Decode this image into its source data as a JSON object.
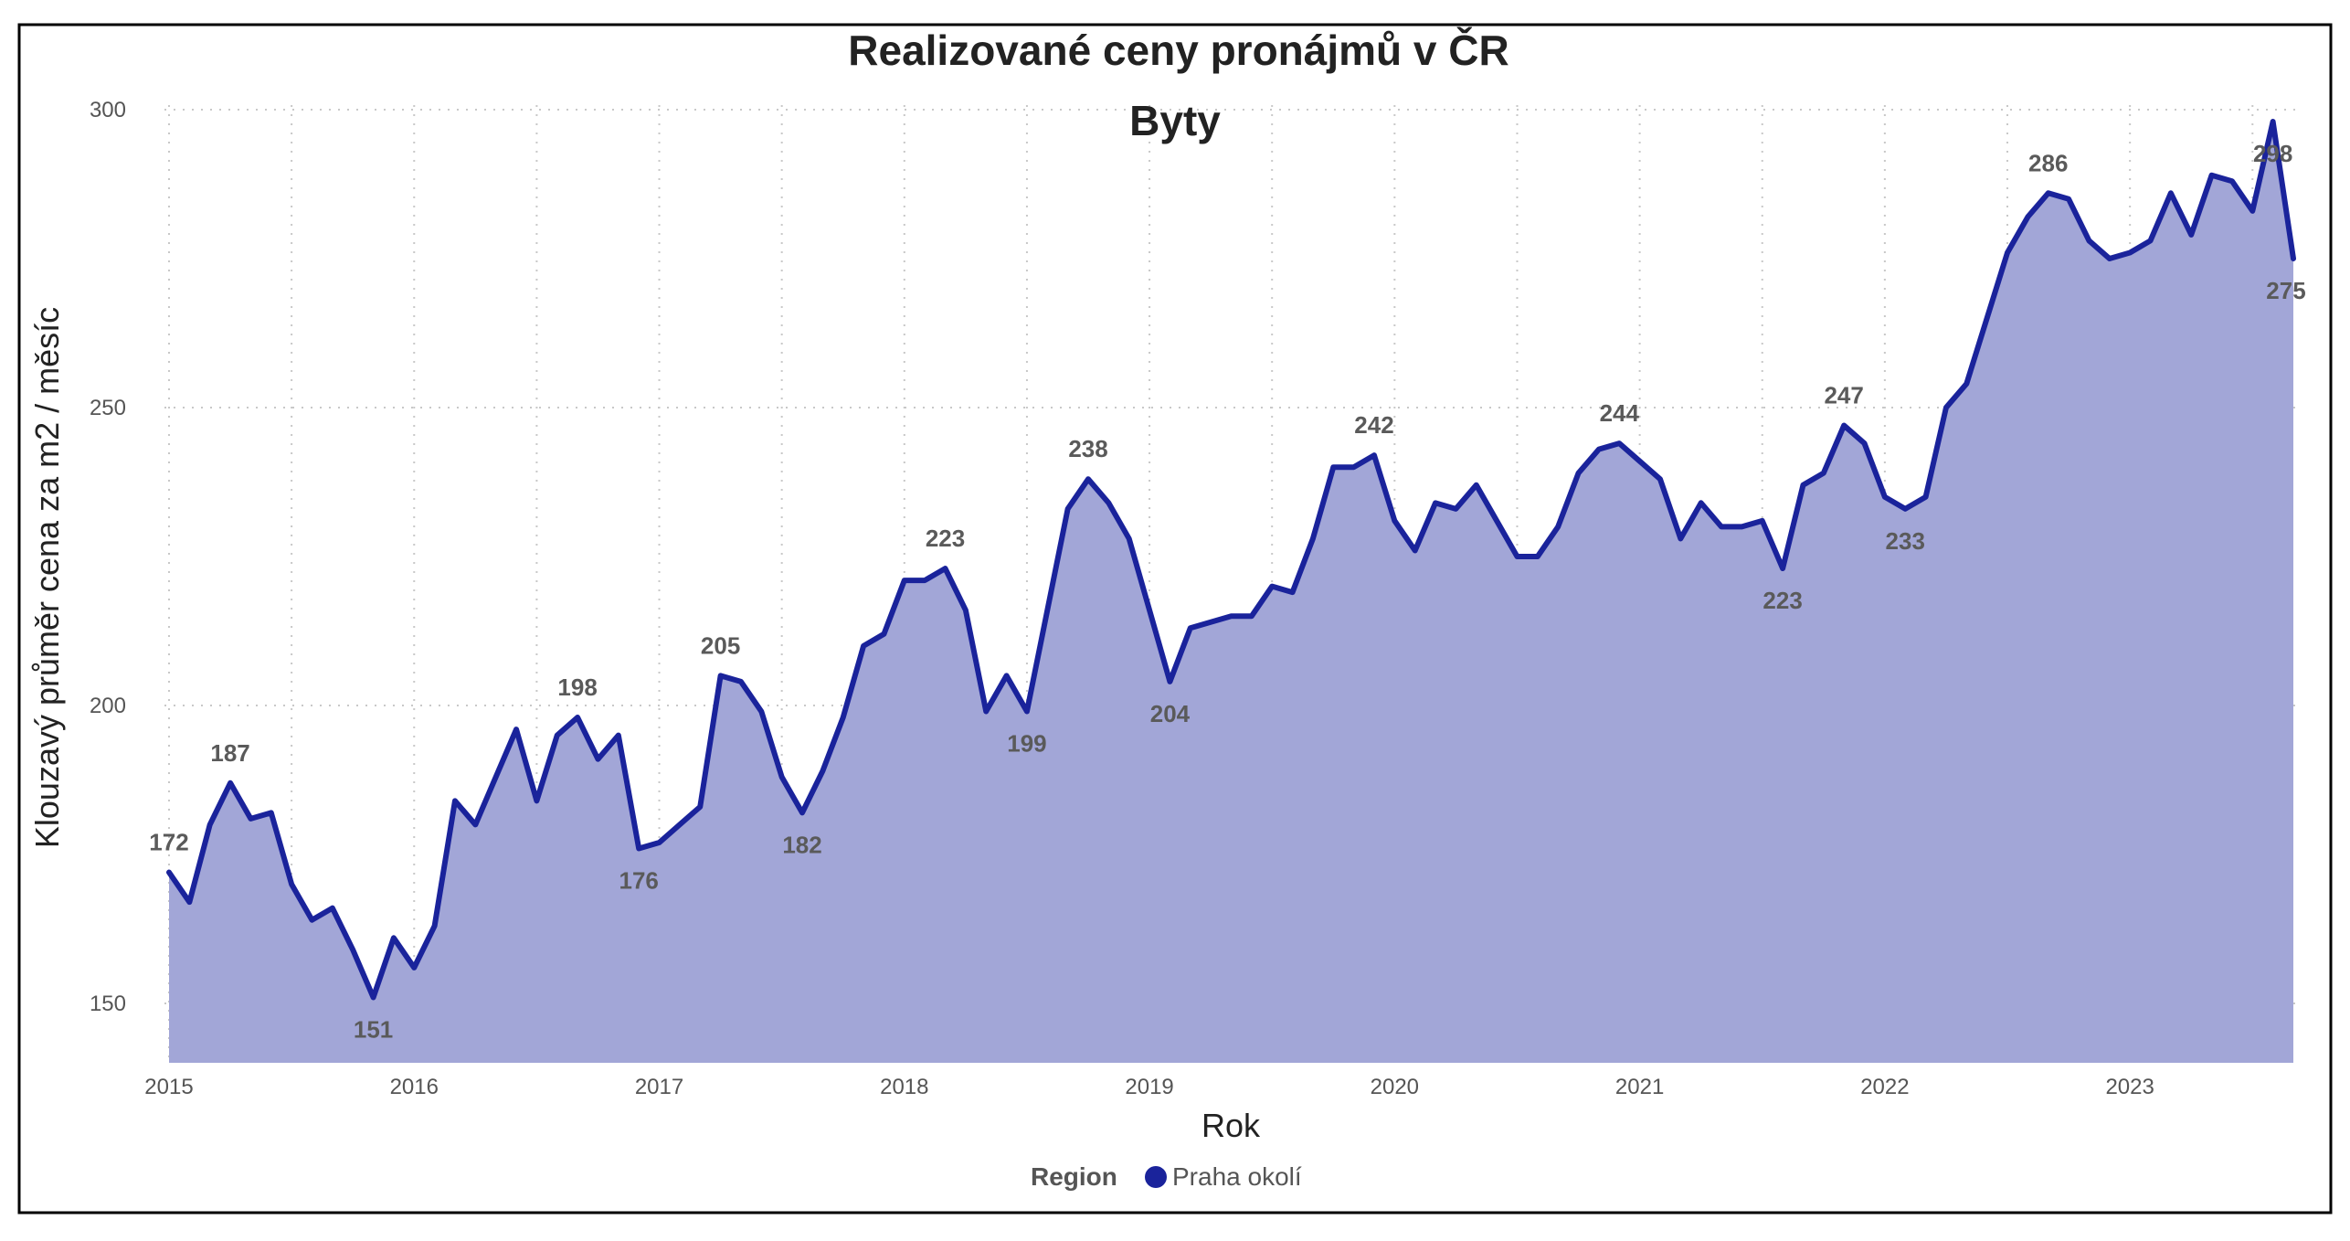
{
  "title": "Realizované ceny pronájmů v ČR",
  "subtitle": "Byty",
  "colors": {
    "line": "#1a239b",
    "fill": "#a2a6d7",
    "frame": "#000000"
  },
  "legend": {
    "title": "Region",
    "items": [
      {
        "label": "Praha okolí",
        "color": "#1a239b"
      }
    ]
  },
  "chart_data": {
    "type": "area",
    "title": "Realizované ceny pronájmů v ČR",
    "subtitle": "Byty",
    "xlabel": "Rok",
    "ylabel": "Klouzavý průměr cena za m2 / měsíc",
    "ylim": [
      140,
      301
    ],
    "xlim": [
      "2015-01",
      "2023-09"
    ],
    "grid": true,
    "legend_position": "bottom",
    "x_ticks": [
      "2015",
      "2016",
      "2017",
      "2018",
      "2019",
      "2020",
      "2021",
      "2022",
      "2023"
    ],
    "y_ticks": [
      150,
      200,
      250,
      300
    ],
    "series": [
      {
        "name": "Praha okolí",
        "x": [
          "2015-01",
          "2015-02",
          "2015-03",
          "2015-04",
          "2015-05",
          "2015-06",
          "2015-07",
          "2015-08",
          "2015-09",
          "2015-10",
          "2015-11",
          "2015-12",
          "2016-01",
          "2016-02",
          "2016-03",
          "2016-04",
          "2016-05",
          "2016-06",
          "2016-07",
          "2016-08",
          "2016-09",
          "2016-10",
          "2016-11",
          "2016-12",
          "2017-01",
          "2017-02",
          "2017-03",
          "2017-04",
          "2017-05",
          "2017-06",
          "2017-07",
          "2017-08",
          "2017-09",
          "2017-10",
          "2017-11",
          "2017-12",
          "2018-01",
          "2018-02",
          "2018-03",
          "2018-04",
          "2018-05",
          "2018-06",
          "2018-07",
          "2018-08",
          "2018-09",
          "2018-10",
          "2018-11",
          "2018-12",
          "2019-01",
          "2019-02",
          "2019-03",
          "2019-04",
          "2019-05",
          "2019-06",
          "2019-07",
          "2019-08",
          "2019-09",
          "2019-10",
          "2019-11",
          "2019-12",
          "2020-01",
          "2020-02",
          "2020-03",
          "2020-04",
          "2020-05",
          "2020-06",
          "2020-07",
          "2020-08",
          "2020-09",
          "2020-10",
          "2020-11",
          "2020-12",
          "2021-01",
          "2021-02",
          "2021-03",
          "2021-04",
          "2021-05",
          "2021-06",
          "2021-07",
          "2021-08",
          "2021-09",
          "2021-10",
          "2021-11",
          "2021-12",
          "2022-01",
          "2022-02",
          "2022-03",
          "2022-04",
          "2022-05",
          "2022-06",
          "2022-07",
          "2022-08",
          "2022-09",
          "2022-10",
          "2022-11",
          "2022-12",
          "2023-01",
          "2023-02",
          "2023-03",
          "2023-04",
          "2023-05",
          "2023-06",
          "2023-07",
          "2023-08",
          "2023-09"
        ],
        "values": [
          172,
          167,
          180,
          187,
          181,
          182,
          170,
          164,
          166,
          159,
          151,
          161,
          156,
          163,
          184,
          180,
          188,
          196,
          184,
          195,
          198,
          191,
          195,
          176,
          177,
          180,
          183,
          205,
          204,
          199,
          188,
          182,
          189,
          198,
          210,
          212,
          221,
          221,
          223,
          216,
          199,
          205,
          199,
          216,
          233,
          238,
          234,
          228,
          216,
          204,
          213,
          214,
          215,
          215,
          220,
          219,
          228,
          240,
          240,
          242,
          231,
          226,
          234,
          233,
          237,
          231,
          225,
          225,
          230,
          239,
          243,
          244,
          241,
          238,
          228,
          234,
          230,
          230,
          231,
          223,
          237,
          239,
          247,
          244,
          235,
          233,
          235,
          250,
          254,
          265,
          276,
          282,
          286,
          285,
          278,
          275,
          276,
          278,
          286,
          279,
          289,
          288,
          283,
          298,
          275
        ]
      }
    ],
    "data_labels": [
      {
        "x": "2015-01",
        "value": 172,
        "text": "172",
        "pos": "above"
      },
      {
        "x": "2015-04",
        "value": 187,
        "text": "187",
        "pos": "above"
      },
      {
        "x": "2015-11",
        "value": 151,
        "text": "151",
        "pos": "below"
      },
      {
        "x": "2016-09",
        "value": 198,
        "text": "198",
        "pos": "above"
      },
      {
        "x": "2016-12",
        "value": 176,
        "text": "176",
        "pos": "below"
      },
      {
        "x": "2017-04",
        "value": 205,
        "text": "205",
        "pos": "above"
      },
      {
        "x": "2017-08",
        "value": 182,
        "text": "182",
        "pos": "below"
      },
      {
        "x": "2018-03",
        "value": 223,
        "text": "223",
        "pos": "above"
      },
      {
        "x": "2018-07",
        "value": 199,
        "text": "199",
        "pos": "below"
      },
      {
        "x": "2018-10",
        "value": 238,
        "text": "238",
        "pos": "above"
      },
      {
        "x": "2019-02",
        "value": 204,
        "text": "204",
        "pos": "below"
      },
      {
        "x": "2019-12",
        "value": 242,
        "text": "242",
        "pos": "above"
      },
      {
        "x": "2020-12",
        "value": 244,
        "text": "244",
        "pos": "above"
      },
      {
        "x": "2021-08",
        "value": 223,
        "text": "223",
        "pos": "below"
      },
      {
        "x": "2021-11",
        "value": 247,
        "text": "247",
        "pos": "above"
      },
      {
        "x": "2022-02",
        "value": 233,
        "text": "233",
        "pos": "below"
      },
      {
        "x": "2022-09",
        "value": 286,
        "text": "286",
        "pos": "above"
      },
      {
        "x": "2023-08",
        "value": 298,
        "text": "298",
        "pos": "below"
      },
      {
        "x": "2023-09",
        "value": 275,
        "text": "275",
        "pos": "below"
      }
    ]
  }
}
